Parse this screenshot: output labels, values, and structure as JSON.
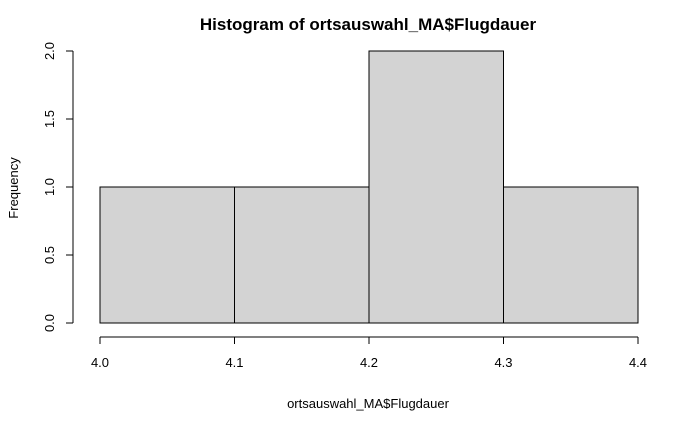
{
  "chart_data": {
    "type": "bar",
    "title": "Histogram of ortsauswahl_MA$Flugdauer",
    "xlabel": "ortsauswahl_MA$Flugdauer",
    "ylabel": "Frequency",
    "bins": [
      {
        "start": 4.0,
        "end": 4.1,
        "value": 1
      },
      {
        "start": 4.1,
        "end": 4.2,
        "value": 1
      },
      {
        "start": 4.2,
        "end": 4.3,
        "value": 2
      },
      {
        "start": 4.3,
        "end": 4.4,
        "value": 1
      }
    ],
    "xlim": [
      4.0,
      4.4
    ],
    "ylim": [
      0,
      2.0
    ],
    "xticks": [
      4.0,
      4.1,
      4.2,
      4.3,
      4.4
    ],
    "xtick_labels": [
      "4.0",
      "4.1",
      "4.2",
      "4.3",
      "4.4"
    ],
    "yticks": [
      0.0,
      0.5,
      1.0,
      1.5,
      2.0
    ],
    "ytick_labels": [
      "0.0",
      "0.5",
      "1.0",
      "1.5",
      "2.0"
    ],
    "bar_fill": "#d3d3d3",
    "bar_stroke": "#000000",
    "grid": false
  }
}
